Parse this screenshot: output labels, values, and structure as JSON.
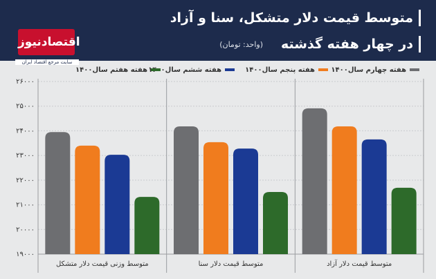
{
  "brand": {
    "name": "اقتصادنیوز",
    "tagline": "سایت مرجع اقتصاد ایران"
  },
  "chart_data": {
    "type": "bar",
    "title": [
      "متوسط قیمت دلار متشکل، سنا و آزاد",
      "در چهار هفته گذشته"
    ],
    "subtitle": "(واحد: تومان)",
    "categories": [
      "متوسط وزنی قیمت دلار متشکل",
      "متوسط قیمت دلار سنا",
      "متوسط قیمت دلار آزاد"
    ],
    "series": [
      {
        "name": "هفته چهارم سال۱۴۰۰",
        "color": "#6d6e71",
        "values": [
          23950,
          24180,
          24910
        ]
      },
      {
        "name": "هفته پنجم سال۱۴۰۰",
        "color": "#f07c1e",
        "values": [
          23400,
          23540,
          24180
        ]
      },
      {
        "name": "هفته ششم سال۱۴۰۰",
        "color": "#1b3a94",
        "values": [
          23030,
          23280,
          23650
        ]
      },
      {
        "name": "هفته هفتم سال۱۴۰۰",
        "color": "#2d6a2a",
        "values": [
          21320,
          21520,
          21690
        ]
      }
    ],
    "ylim": [
      19000,
      26000
    ],
    "yticks": [
      {
        "value": 19000,
        "label": "۱۹۰۰۰"
      },
      {
        "value": 20000,
        "label": "۲۰۰۰۰"
      },
      {
        "value": 21000,
        "label": "۲۱۰۰۰"
      },
      {
        "value": 22000,
        "label": "۲۲۰۰۰"
      },
      {
        "value": 23000,
        "label": "۲۳۰۰۰"
      },
      {
        "value": 24000,
        "label": "۲۴۰۰۰"
      },
      {
        "value": 25000,
        "label": "۲۵۰۰۰"
      },
      {
        "value": 26000,
        "label": "۲۶۰۰۰"
      }
    ],
    "grid": true
  }
}
